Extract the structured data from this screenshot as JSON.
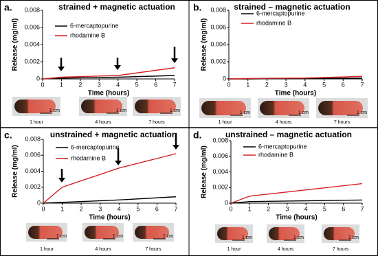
{
  "chart_data": [
    {
      "type": "line",
      "panel_label": "a.",
      "title": "strained + magnetic actuation",
      "x_label": "Time (hours)",
      "y_label": "Release (mg/ml)",
      "x": [
        0,
        1,
        4,
        7
      ],
      "xlim": [
        0,
        7
      ],
      "xticks": [
        0,
        1,
        2,
        3,
        4,
        5,
        6,
        7
      ],
      "ylim": [
        0,
        0.008
      ],
      "yticks": [
        0,
        0.002,
        0.004,
        0.006,
        0.008
      ],
      "series": [
        {
          "name": "6-mercaptopurine",
          "color": "#000000",
          "values": [
            0,
            0.0001,
            0.0002,
            0.0004
          ]
        },
        {
          "name": "rhodamine B",
          "color": "#d62020",
          "values": [
            0,
            0.0002,
            0.0004,
            0.0013
          ]
        }
      ],
      "photos": [
        {
          "caption": "1 hour",
          "scale": "1 cm"
        },
        {
          "caption": "4 hours",
          "scale": "1 cm"
        },
        {
          "caption": "7 hours",
          "scale": "1 cm"
        }
      ]
    },
    {
      "type": "line",
      "panel_label": "b.",
      "title": "strained – magnetic actuation",
      "x_label": "Time (hours)",
      "y_label": "Release (mg/ml)",
      "x": [
        0,
        1,
        4,
        7
      ],
      "xlim": [
        0,
        7
      ],
      "xticks": [
        0,
        1,
        2,
        3,
        4,
        5,
        6,
        7
      ],
      "ylim": [
        0,
        0.008
      ],
      "yticks": [
        0,
        0.002,
        0.004,
        0.006,
        0.008
      ],
      "series": [
        {
          "name": "6-mercaptopurine",
          "color": "#000000",
          "values": [
            0,
            0,
            5e-05,
            0.0001
          ]
        },
        {
          "name": "rhodamine B",
          "color": "#d62020",
          "values": [
            0,
            5e-05,
            0.0001,
            0.0003
          ]
        }
      ],
      "photos": [
        {
          "caption": "1 hour",
          "scale": "1 cm"
        },
        {
          "caption": "4 hours",
          "scale": "1 cm"
        },
        {
          "caption": "7 hours",
          "scale": "1 cm"
        }
      ]
    },
    {
      "type": "line",
      "panel_label": "c.",
      "title": "unstrained + magnetic actuation",
      "x_label": "Time (hours)",
      "y_label": "Release (mg/ml)",
      "x": [
        0,
        1,
        4,
        7
      ],
      "xlim": [
        0,
        7
      ],
      "xticks": [
        0,
        1,
        2,
        3,
        4,
        5,
        6,
        7
      ],
      "ylim": [
        0,
        0.008
      ],
      "yticks": [
        0,
        0.002,
        0.004,
        0.006,
        0.008
      ],
      "series": [
        {
          "name": "6-mercaptopurine",
          "color": "#000000",
          "values": [
            0,
            0.0001,
            0.0004,
            0.0008
          ]
        },
        {
          "name": "rhodamine B",
          "color": "#d62020",
          "values": [
            0,
            0.002,
            0.0044,
            0.0062
          ]
        }
      ],
      "photos": [
        {
          "caption": "1 hour",
          "scale": "1 cm"
        },
        {
          "caption": "4 hours",
          "scale": "1 cm"
        },
        {
          "caption": "7 hours",
          "scale": "1 cm"
        }
      ]
    },
    {
      "type": "line",
      "panel_label": "d.",
      "title": "unstrained – magnetic actuation",
      "x_label": "Time (hours)",
      "y_label": "Release (mg/ml)",
      "x": [
        0,
        1,
        4,
        7
      ],
      "xlim": [
        0,
        7
      ],
      "xticks": [
        0,
        1,
        2,
        3,
        4,
        5,
        6,
        7
      ],
      "ylim": [
        0,
        0.008
      ],
      "yticks": [
        0,
        0.002,
        0.004,
        0.006,
        0.008
      ],
      "series": [
        {
          "name": "6-mercaptopurine",
          "color": "#000000",
          "values": [
            0,
            0.0002,
            0.0003,
            0.0004
          ]
        },
        {
          "name": "rhodamine B",
          "color": "#d62020",
          "values": [
            0,
            0.0009,
            0.0017,
            0.0025
          ]
        }
      ],
      "photos": [
        {
          "caption": "1 hour",
          "scale": "1 cm"
        },
        {
          "caption": "4 hours",
          "scale": "1 cm"
        },
        {
          "caption": "7 hours",
          "scale": "1 cm"
        }
      ]
    }
  ]
}
